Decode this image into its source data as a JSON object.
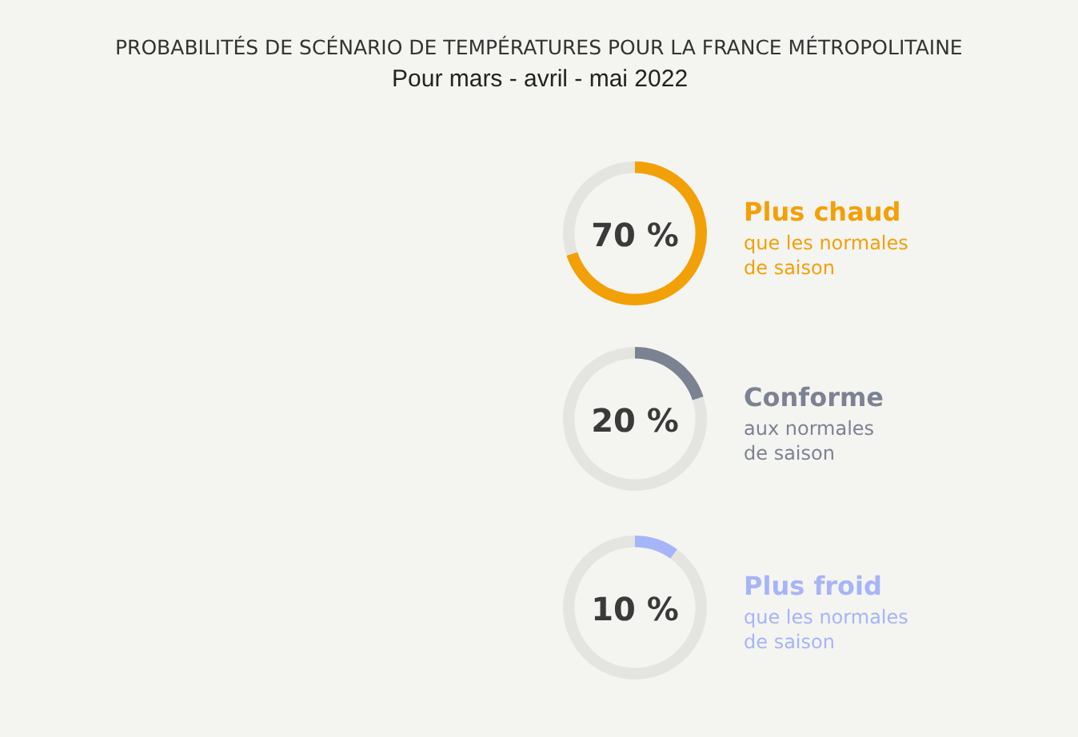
{
  "chart_data": [
    {
      "type": "other",
      "title": "PROBABILITÉS DE SCÉNARIO DE TEMPÉRATURES POUR LA FRANCE MÉTROPOLITAINE",
      "subtitle": "Pour mars - avril - mai 2022"
    },
    {
      "type": "donut",
      "title": "Plus chaud",
      "subtitle": "que les normales de saison",
      "categories": [
        null,
        null
      ],
      "values": [
        70,
        30
      ],
      "annotations": [
        "70 %"
      ],
      "colors": [
        "#f2a007",
        "#e4e4e0"
      ]
    },
    {
      "type": "donut",
      "title": "Conforme",
      "subtitle": "aux normales de saison",
      "categories": [
        null,
        null
      ],
      "values": [
        20,
        80
      ],
      "annotations": [
        "20 %"
      ],
      "colors": [
        "#7b8292",
        "#e4e4e0"
      ]
    },
    {
      "type": "donut",
      "title": "Plus froid",
      "subtitle": "que les normales de saison",
      "categories": [
        null,
        null
      ],
      "values": [
        10,
        90
      ],
      "annotations": [
        "10 %"
      ],
      "colors": [
        "#a6b4f8",
        "#e4e4e0"
      ]
    }
  ]
}
